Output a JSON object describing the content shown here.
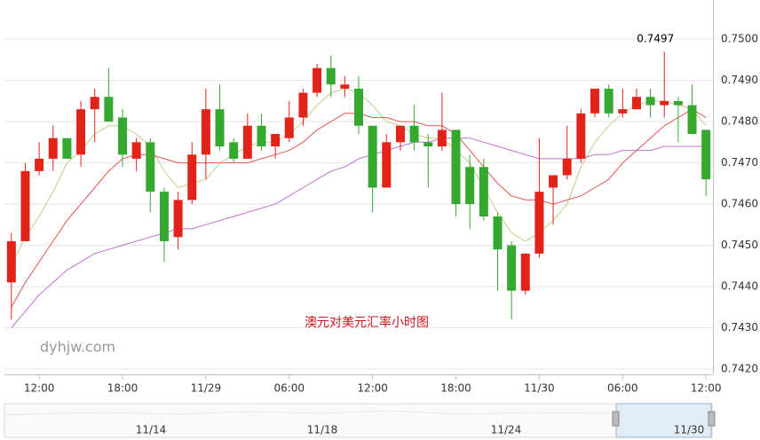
{
  "chart_data": {
    "type": "candlestick",
    "categories": [
      null,
      null,
      "12:00",
      null,
      null,
      null,
      null,
      null,
      "18:00",
      null,
      null,
      null,
      null,
      null,
      "11/29",
      null,
      null,
      null,
      null,
      null,
      "06:00",
      null,
      null,
      null,
      null,
      null,
      "12:00",
      null,
      null,
      null,
      null,
      null,
      "18:00",
      null,
      null,
      null,
      null,
      null,
      "11/30",
      null,
      null,
      null,
      null,
      null,
      "06:00",
      null,
      null,
      null,
      null,
      null,
      "12:00"
    ],
    "open": [
      0.7441,
      0.7451,
      0.7468,
      0.7471,
      0.7476,
      0.7472,
      0.7483,
      0.7486,
      0.7481,
      0.7471,
      0.7475,
      0.7463,
      0.7452,
      0.7461,
      0.7472,
      0.7483,
      0.7475,
      0.7471,
      0.7479,
      0.7474,
      0.7476,
      0.7481,
      0.7487,
      0.7493,
      0.7488,
      0.7488,
      0.7479,
      0.7464,
      0.7475,
      0.7479,
      0.7475,
      0.7474,
      0.7478,
      0.7469,
      0.7469,
      0.7457,
      0.745,
      0.7439,
      0.7448,
      0.7464,
      0.7467,
      0.7471,
      0.7482,
      0.7488,
      0.7482,
      0.7483,
      0.7486,
      0.7484,
      0.7485,
      0.7484,
      0.7478
    ],
    "high": [
      0.7453,
      0.747,
      0.7475,
      0.7479,
      0.7476,
      0.7485,
      0.7488,
      0.7493,
      0.7483,
      0.7476,
      0.7476,
      0.7464,
      0.7463,
      0.7475,
      0.7488,
      0.7489,
      0.7476,
      0.7482,
      0.7482,
      0.7477,
      0.7485,
      0.7488,
      0.7494,
      0.7496,
      0.7491,
      0.7491,
      0.7479,
      0.7477,
      0.7479,
      0.7484,
      0.7477,
      0.7487,
      0.7478,
      0.7472,
      0.7471,
      0.7458,
      0.7451,
      0.7448,
      0.7476,
      0.7467,
      0.7479,
      0.7483,
      0.7488,
      0.7489,
      0.7488,
      0.7488,
      0.7488,
      0.7497,
      0.7486,
      0.7489,
      0.7478
    ],
    "low": [
      0.7432,
      0.7451,
      0.7467,
      0.7468,
      0.7471,
      0.7469,
      0.7475,
      0.748,
      0.7469,
      0.7468,
      0.7458,
      0.7446,
      0.7449,
      0.746,
      0.7466,
      0.7473,
      0.747,
      0.7471,
      0.7473,
      0.7471,
      0.7475,
      0.7479,
      0.7486,
      0.7486,
      0.7486,
      0.7477,
      0.7458,
      0.7464,
      0.7473,
      0.7473,
      0.7464,
      0.7473,
      0.7457,
      0.7454,
      0.7456,
      0.7439,
      0.7432,
      0.7438,
      0.7447,
      0.7455,
      0.7466,
      0.747,
      0.7481,
      0.7481,
      0.7481,
      0.7483,
      0.7481,
      0.7481,
      0.7475,
      0.7477,
      0.7462
    ],
    "close": [
      0.7451,
      0.7468,
      0.7471,
      0.7476,
      0.7471,
      0.7483,
      0.7486,
      0.748,
      0.7472,
      0.7475,
      0.7463,
      0.7451,
      0.7461,
      0.7472,
      0.7483,
      0.7474,
      0.7471,
      0.7479,
      0.7474,
      0.7477,
      0.7481,
      0.7487,
      0.7493,
      0.7489,
      0.7489,
      0.7479,
      0.7464,
      0.7475,
      0.7479,
      0.7475,
      0.7474,
      0.7478,
      0.746,
      0.746,
      0.7457,
      0.7449,
      0.7439,
      0.7448,
      0.7463,
      0.7467,
      0.7471,
      0.7482,
      0.7488,
      0.7482,
      0.7483,
      0.7486,
      0.7484,
      0.7485,
      0.7484,
      0.7477,
      0.7466
    ],
    "up_color": "#e2231a",
    "down_color": "#35a82f",
    "lines": [
      {
        "color": "#c9c98a",
        "values": [
          0.7445,
          0.7452,
          0.7457,
          0.7463,
          0.747,
          0.7473,
          0.7477,
          0.7479,
          0.7479,
          0.7477,
          0.7474,
          0.7468,
          0.7464,
          0.7465,
          0.7466,
          0.747,
          0.7472,
          0.7474,
          0.7475,
          0.7475,
          0.7477,
          0.748,
          0.7484,
          0.7487,
          0.7488,
          0.7487,
          0.7484,
          0.748,
          0.7479,
          0.7477,
          0.7476,
          0.7476,
          0.7473,
          0.747,
          0.7464,
          0.7458,
          0.7453,
          0.7451,
          0.7453,
          0.7456,
          0.746,
          0.7469,
          0.7475,
          0.7479,
          0.7482,
          0.7484,
          0.7485,
          0.7485,
          0.7484,
          0.7483,
          0.7479
        ]
      },
      {
        "color": "#e8544f",
        "values": [
          0.7435,
          0.7441,
          0.7446,
          0.7451,
          0.7456,
          0.746,
          0.7464,
          0.7468,
          0.7471,
          0.7472,
          0.7472,
          0.7471,
          0.747,
          0.747,
          0.747,
          0.747,
          0.747,
          0.747,
          0.7471,
          0.7472,
          0.7473,
          0.7475,
          0.7478,
          0.748,
          0.7482,
          0.7482,
          0.7481,
          0.7481,
          0.748,
          0.748,
          0.7479,
          0.7479,
          0.7477,
          0.7473,
          0.7469,
          0.7465,
          0.7462,
          0.7461,
          0.7461,
          0.746,
          0.7461,
          0.7462,
          0.7464,
          0.7466,
          0.747,
          0.7473,
          0.7476,
          0.7479,
          0.7481,
          0.7483,
          0.7481
        ]
      },
      {
        "color": "#c36fd4",
        "values": [
          0.743,
          0.7434,
          0.7438,
          0.7441,
          0.7444,
          0.7446,
          0.7448,
          0.7449,
          0.745,
          0.7451,
          0.7452,
          0.7453,
          0.7454,
          0.7454,
          0.7455,
          0.7456,
          0.7457,
          0.7458,
          0.7459,
          0.746,
          0.7462,
          0.7464,
          0.7466,
          0.7468,
          0.7469,
          0.7471,
          0.7472,
          0.7473,
          0.7474,
          0.7475,
          0.7475,
          0.7476,
          0.7476,
          0.7476,
          0.7475,
          0.7474,
          0.7473,
          0.7472,
          0.7471,
          0.7471,
          0.7471,
          0.7471,
          0.7472,
          0.7472,
          0.7473,
          0.7473,
          0.7473,
          0.7474,
          0.7474,
          0.7474,
          0.7474
        ]
      }
    ],
    "ylim": [
      0.74187,
      0.75095
    ],
    "yticks": [
      {
        "value": 0.742,
        "label": "0.7420"
      },
      {
        "value": 0.743,
        "label": "0.7430"
      },
      {
        "value": 0.744,
        "label": "0.7440"
      },
      {
        "value": 0.745,
        "label": "0.7450"
      },
      {
        "value": 0.746,
        "label": "0.7460"
      },
      {
        "value": 0.747,
        "label": "0.7470"
      },
      {
        "value": 0.748,
        "label": "0.7480"
      },
      {
        "value": 0.749,
        "label": "0.7490"
      },
      {
        "value": 0.75,
        "label": "0.7500"
      }
    ],
    "grid": true,
    "max_index": 47,
    "title": "澳元对美元汇率小时图",
    "watermark": "dyhjw.com"
  },
  "navigator": {
    "labels": [
      "11/14",
      "11/18",
      "11/24",
      "11/30"
    ]
  }
}
